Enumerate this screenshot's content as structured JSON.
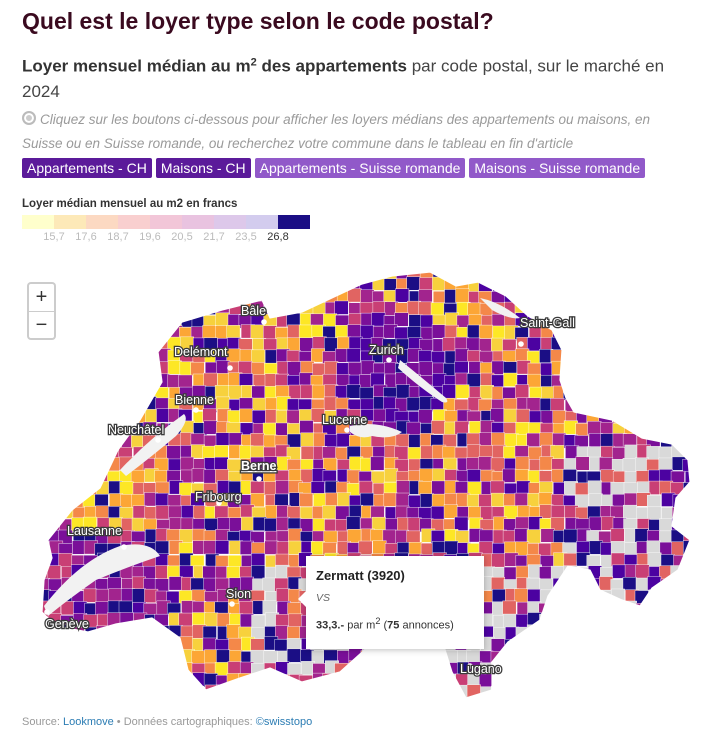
{
  "title": "Quel est le loyer type selon le code postal?",
  "subtitle": {
    "bold": "Loyer mensuel médian au m",
    "sup": "2",
    "bold2": " des appartements",
    "rest": " par code postal, sur le marché en 2024"
  },
  "note": "Cliquez sur les boutons ci-dessous pour afficher les loyers médians des appartements ou maisons, en Suisse ou en Suisse romande, ou recherchez votre commune dans le tableau en fin d'article",
  "buttons": {
    "b1": "Appartements - CH",
    "b2": "Maisons - CH",
    "b3": "Appartements - Suisse romande",
    "b4": "Maisons - Suisse romande"
  },
  "legend": {
    "title": "Loyer médian mensuel au m2 en francs",
    "ticks": [
      "15,7",
      "17,6",
      "18,7",
      "19,6",
      "20,5",
      "21,7",
      "23,5",
      "26,8"
    ],
    "colors": [
      "#ffffcc",
      "#fde9b8",
      "#fcd9c2",
      "#f9cfcf",
      "#f2c6d8",
      "#e9c3e0",
      "#ddc8ea",
      "#d3ccee",
      "#1b0e85"
    ]
  },
  "zoom": {
    "in": "+",
    "out": "−"
  },
  "cities": {
    "bale": "Bâle",
    "delemont": "Delémont",
    "zurich": "Zurich",
    "saintgall": "Saint-Gall",
    "bienne": "Bienne",
    "neuchatel": "Neuchâtel",
    "lucerne": "Lucerne",
    "berne": "Berne",
    "fribourg": "Fribourg",
    "lausanne": "Lausanne",
    "sion": "Sion",
    "geneve": "Genève",
    "lugano": "Lugano"
  },
  "tooltip": {
    "title": "Zermatt (3920)",
    "canton": "VS",
    "value": "33,3.-",
    "per": " par m",
    "sup": "2",
    "paren_open": " (",
    "count": "75",
    "count_label": " annonces)"
  },
  "source": {
    "label": "Source: ",
    "link1": "Lookmove",
    "mid": " • Données cartographiques: ",
    "link2": "©swisstopo"
  }
}
